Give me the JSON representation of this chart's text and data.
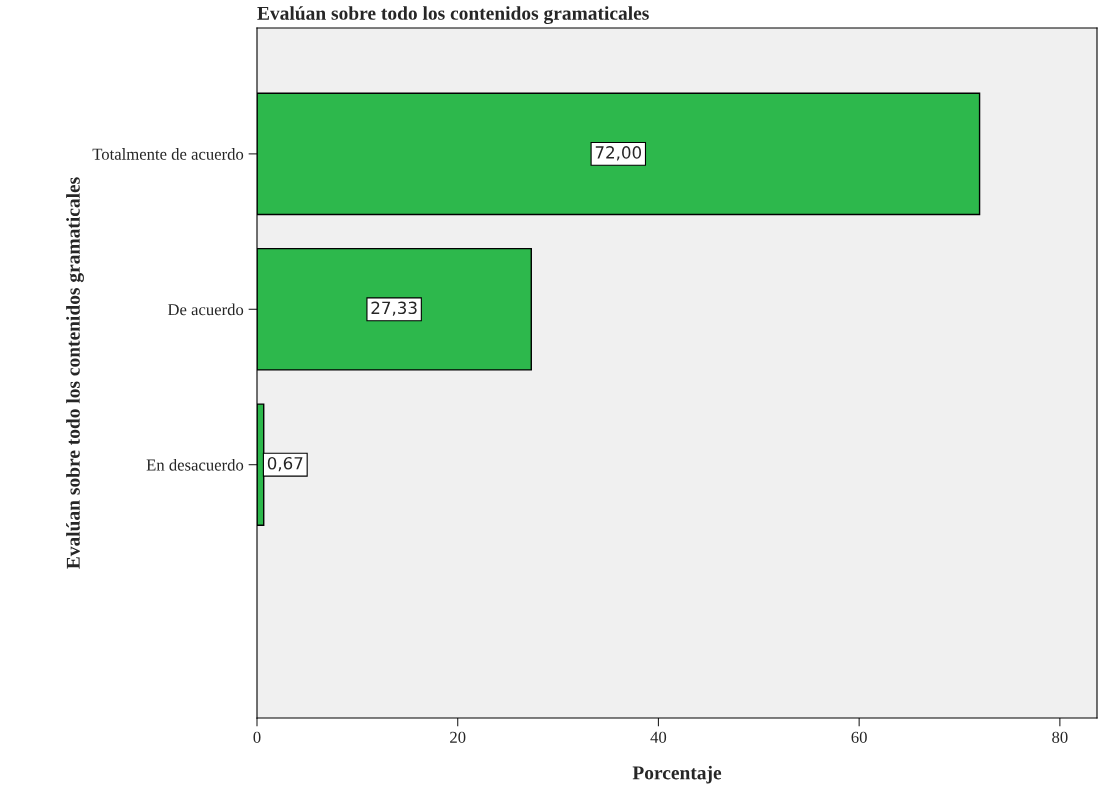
{
  "chart_data": {
    "type": "bar",
    "orientation": "horizontal",
    "title": "Evalúan sobre todo los contenidos gramaticales",
    "xlabel": "Porcentaje",
    "ylabel": "Evalúan sobre todo los contenidos gramaticales",
    "categories": [
      "Totalmente de acuerdo",
      "De acuerdo",
      "En desacuerdo"
    ],
    "values": [
      72.0,
      27.33,
      0.67
    ],
    "value_labels": [
      "72,00",
      "27,33",
      "0,67"
    ],
    "color": "#2db84c",
    "xlim": [
      0,
      83.7
    ],
    "xticks": [
      0,
      20,
      40,
      60,
      80
    ],
    "grid": false
  }
}
